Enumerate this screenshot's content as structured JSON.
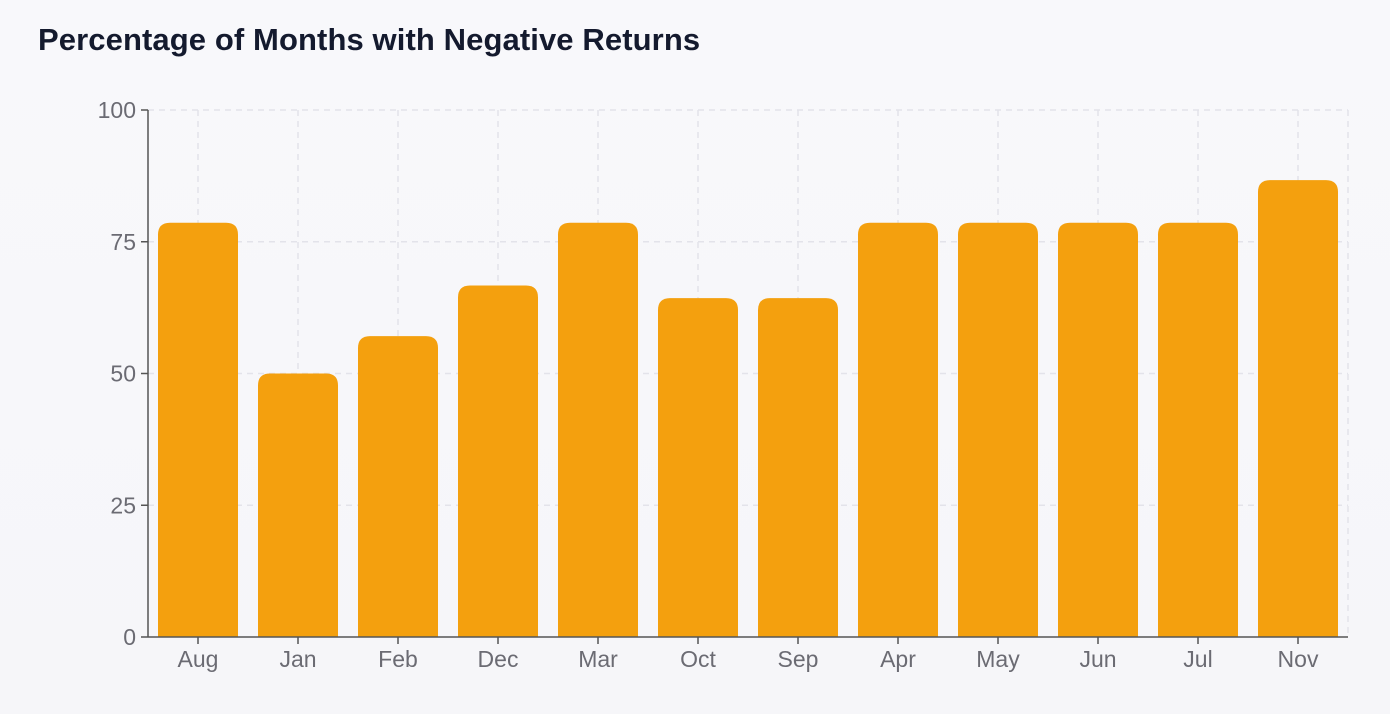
{
  "chart_data": {
    "type": "bar",
    "title": "Percentage of Months with Negative Returns",
    "xlabel": "",
    "ylabel": "",
    "categories": [
      "Aug",
      "Jan",
      "Feb",
      "Dec",
      "Mar",
      "Oct",
      "Sep",
      "Apr",
      "May",
      "Jun",
      "Jul",
      "Nov"
    ],
    "values": [
      78.6,
      50.0,
      57.1,
      66.7,
      78.6,
      64.3,
      64.3,
      78.6,
      78.6,
      78.6,
      78.6,
      86.7
    ],
    "ylim": [
      0,
      100
    ],
    "yticks": [
      "0",
      "25",
      "50",
      "75",
      "100"
    ],
    "grid": true,
    "legend": "none",
    "bar_color": "#f4a00e",
    "grid_color": "#e3e3ea",
    "axis_color": "#555555"
  }
}
